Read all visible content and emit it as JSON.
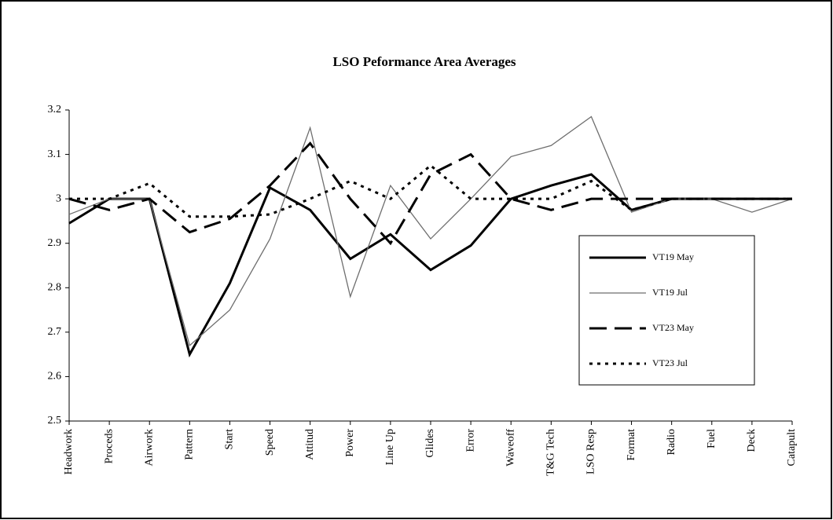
{
  "chart_data": {
    "type": "line",
    "title": "LSO Peformance Area Averages",
    "categories": [
      "Headwork",
      "Proceds",
      "Airwork",
      "Pattern",
      "Start",
      "Speed",
      "Attitud",
      "Power",
      "Line Up",
      "Glides",
      "Error",
      "Waveoff",
      "T&G Tech",
      "LSO Resp",
      "Format",
      "Radio",
      "Fuel",
      "Deck",
      "Catapult"
    ],
    "series": [
      {
        "name": "VT19 May",
        "color": "#000000",
        "width": 3,
        "dash": "none",
        "values": [
          2.945,
          3.0,
          3.0,
          2.65,
          2.81,
          3.025,
          2.975,
          2.865,
          2.92,
          2.84,
          2.895,
          3.0,
          3.03,
          3.055,
          2.975,
          3.0,
          3.0,
          3.0,
          3.0
        ]
      },
      {
        "name": "VT19 Jul",
        "color": "#6e6e6e",
        "width": 1.3,
        "dash": "none",
        "values": [
          2.965,
          3.0,
          3.0,
          2.67,
          2.75,
          2.91,
          3.16,
          2.78,
          3.03,
          2.91,
          3.0,
          3.095,
          3.12,
          3.185,
          2.97,
          3.0,
          3.0,
          2.97,
          3.0
        ]
      },
      {
        "name": "VT23 May",
        "color": "#000000",
        "width": 3,
        "dash": "22 10",
        "values": [
          3.0,
          2.975,
          3.0,
          2.925,
          2.955,
          3.03,
          3.125,
          3.0,
          2.9,
          3.055,
          3.1,
          3.0,
          2.975,
          3.0,
          3.0,
          3.0,
          3.0,
          3.0,
          3.0
        ]
      },
      {
        "name": "VT23 Jul",
        "color": "#000000",
        "width": 3,
        "dash": "4 6",
        "values": [
          3.0,
          3.0,
          3.035,
          2.96,
          2.96,
          2.965,
          3.0,
          3.04,
          3.0,
          3.075,
          3.0,
          3.0,
          3.0,
          3.04,
          2.975,
          3.0,
          3.0,
          3.0,
          3.0
        ]
      }
    ],
    "ylim": [
      2.5,
      3.2
    ],
    "yticks": [
      2.5,
      2.6,
      2.7,
      2.8,
      2.9,
      3,
      3.1,
      3.2
    ],
    "grid": false,
    "legend": "right"
  }
}
